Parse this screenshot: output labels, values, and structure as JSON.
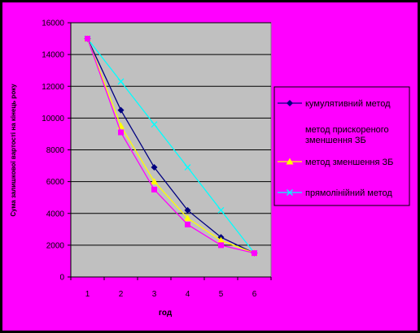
{
  "chart_data": {
    "type": "line",
    "x": [
      1,
      2,
      3,
      4,
      5,
      6
    ],
    "xlabel": "год",
    "ylabel": "Сума залишкової вартості на кінець року",
    "ylim": [
      0,
      16000
    ],
    "yticks": [
      0,
      2000,
      4000,
      6000,
      8000,
      10000,
      12000,
      14000,
      16000
    ],
    "grid": true,
    "legend_position": "right",
    "series": [
      {
        "name": "кумулятивний метод",
        "values": [
          15000,
          10500,
          6900,
          4200,
          2500,
          1500
        ],
        "color": "#000080",
        "marker": "diamond"
      },
      {
        "name": "метод прискореного зменшення ЗБ",
        "values": [
          15000,
          9100,
          5500,
          3300,
          2000,
          1500
        ],
        "color": "#ff00ff",
        "marker": "square"
      },
      {
        "name": "метод зменшення ЗБ",
        "values": [
          15000,
          9500,
          6000,
          3700,
          2300,
          1500
        ],
        "color": "#ffff00",
        "marker": "triangle"
      },
      {
        "name": "прямолінійний метод",
        "values": [
          15000,
          12300,
          9600,
          6900,
          4200,
          1500
        ],
        "color": "#00ffff",
        "marker": "x"
      }
    ]
  }
}
